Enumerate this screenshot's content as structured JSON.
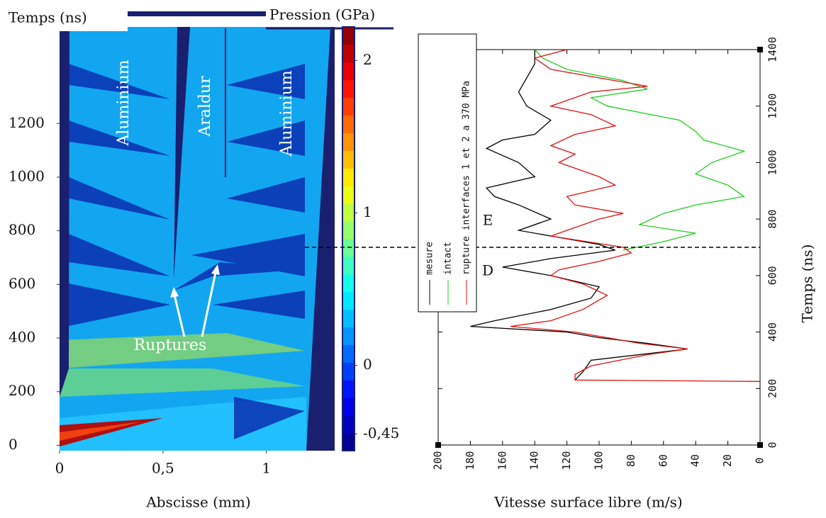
{
  "chart_data": [
    {
      "type": "contour",
      "title": "Temps (ns)",
      "xlabel": "Abscisse (mm)",
      "xlim": [
        0,
        1.33
      ],
      "xticks": [
        0,
        {
          "value": 0.5,
          "label": "0,5"
        },
        1
      ],
      "ylim": [
        -20,
        1560
      ],
      "yticks": [
        0,
        200,
        400,
        600,
        800,
        1000,
        1200
      ],
      "colorbar": {
        "label": "Pression (GPa)",
        "lim": [
          -0.56,
          2.22
        ],
        "ticks": [
          2,
          1,
          0,
          {
            "value": -0.45,
            "label": "-0,45"
          }
        ]
      },
      "annotations": [
        "Aluminium",
        "Araldur",
        "Aluminium",
        "Ruptures"
      ]
    },
    {
      "type": "line",
      "ylabel": "Temps (ns)",
      "xlabel": "Vitesse surface libre (m/s)",
      "xlim": [
        200,
        0
      ],
      "xticks": [
        200,
        180,
        160,
        140,
        120,
        100,
        80,
        60,
        40,
        20,
        0
      ],
      "ylim": [
        0,
        1400
      ],
      "yticks": [
        0,
        200,
        400,
        600,
        800,
        1000,
        1200,
        1400
      ],
      "hline": 700,
      "annotations": [
        "E",
        "D"
      ],
      "series": [
        {
          "name": "mesure",
          "color": "#000000",
          "time": [
            230,
            260,
            300,
            340,
            360,
            380,
            400,
            420,
            440,
            480,
            520,
            560,
            600,
            630,
            660,
            690,
            710,
            760,
            800,
            850,
            880,
            910,
            950,
            1000,
            1050,
            1080,
            1100,
            1150,
            1200,
            1250,
            1300,
            1350,
            1400
          ],
          "values": [
            115,
            110,
            105,
            45,
            70,
            100,
            120,
            180,
            165,
            130,
            105,
            100,
            130,
            160,
            130,
            90,
            100,
            150,
            130,
            150,
            165,
            170,
            140,
            150,
            170,
            160,
            140,
            130,
            145,
            150,
            145,
            140,
            140
          ]
        },
        {
          "name": "intact",
          "color": "#22cc22",
          "time": [
            690,
            720,
            750,
            780,
            820,
            850,
            880,
            920,
            960,
            1000,
            1040,
            1080,
            1110,
            1150,
            1200,
            1230,
            1260,
            1290,
            1330,
            1370,
            1400
          ],
          "values": [
            85,
            60,
            40,
            75,
            60,
            40,
            10,
            20,
            40,
            30,
            10,
            35,
            40,
            50,
            95,
            105,
            70,
            85,
            120,
            135,
            140
          ]
        },
        {
          "name": "rupture interfaces 1 et 2 a 370 MPa",
          "color": "#e01010",
          "time": [
            225,
            230,
            250,
            280,
            320,
            340,
            360,
            380,
            400,
            420,
            440,
            480,
            530,
            570,
            600,
            620,
            650,
            680,
            700,
            740,
            760,
            800,
            820,
            850,
            880,
            900,
            920,
            950,
            1000,
            1030,
            1060,
            1100,
            1130,
            1170,
            1200,
            1250,
            1270,
            1300,
            1330,
            1370,
            1400
          ],
          "values": [
            0,
            115,
            115,
            105,
            70,
            45,
            75,
            95,
            115,
            155,
            130,
            110,
            95,
            110,
            130,
            125,
            100,
            80,
            85,
            130,
            120,
            100,
            85,
            115,
            120,
            105,
            90,
            100,
            125,
            115,
            130,
            115,
            90,
            105,
            130,
            105,
            70,
            100,
            130,
            140,
            120
          ]
        }
      ]
    }
  ]
}
